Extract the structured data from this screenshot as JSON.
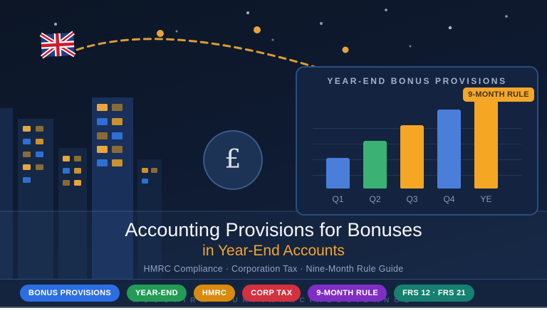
{
  "meta": {
    "brand_watermark": "ACCOFIRM · UKFINANCIALGUIDANCE"
  },
  "hero": {
    "title": "Accounting Provisions for Bonuses",
    "subtitle": "in Year-End Accounts",
    "tagline": "HMRC Compliance · Corporation Tax · Nine-Month Rule Guide",
    "currency_symbol": "£"
  },
  "chart_panel": {
    "title": "YEAR-END BONUS PROVISIONS",
    "callout_label": "9-MONTH RULE"
  },
  "chart_data": {
    "type": "bar",
    "title": "YEAR-END BONUS PROVISIONS",
    "categories": [
      "Q1",
      "Q2",
      "Q3",
      "Q4",
      "YE"
    ],
    "values": [
      34,
      53,
      71,
      88,
      100
    ],
    "ylim": [
      0,
      100
    ],
    "xlabel": "",
    "ylabel": "",
    "grid": true,
    "legend": false,
    "bar_colors": [
      "#4b7ed8",
      "#3bb273",
      "#f5a623",
      "#4b7ed8",
      "#f5a623"
    ],
    "annotation": {
      "label": "9-MONTH RULE",
      "category": "YE"
    }
  },
  "badges": [
    {
      "label": "BONUS PROVISIONS",
      "color": "#2d6de2"
    },
    {
      "label": "YEAR-END",
      "color": "#239b55"
    },
    {
      "label": "HMRC",
      "color": "#d98a0f"
    },
    {
      "label": "CORP TAX",
      "color": "#d33040"
    },
    {
      "label": "9-MONTH RULE",
      "color": "#7e2ec4"
    },
    {
      "label": "FRS 12 · FRS 21",
      "color": "#178070"
    }
  ],
  "colors": {
    "background": "#0e1a30",
    "panel": "#142440",
    "panel_border": "#2b4d80",
    "accent_orange": "#f3a72c",
    "title_text": "#f4f6fa",
    "subtitle_text": "#f0a52e",
    "muted_text": "#8fa3c4",
    "bar_blue": "#4b7ed8",
    "bar_green": "#3bb273",
    "bar_orange": "#f5a623"
  }
}
